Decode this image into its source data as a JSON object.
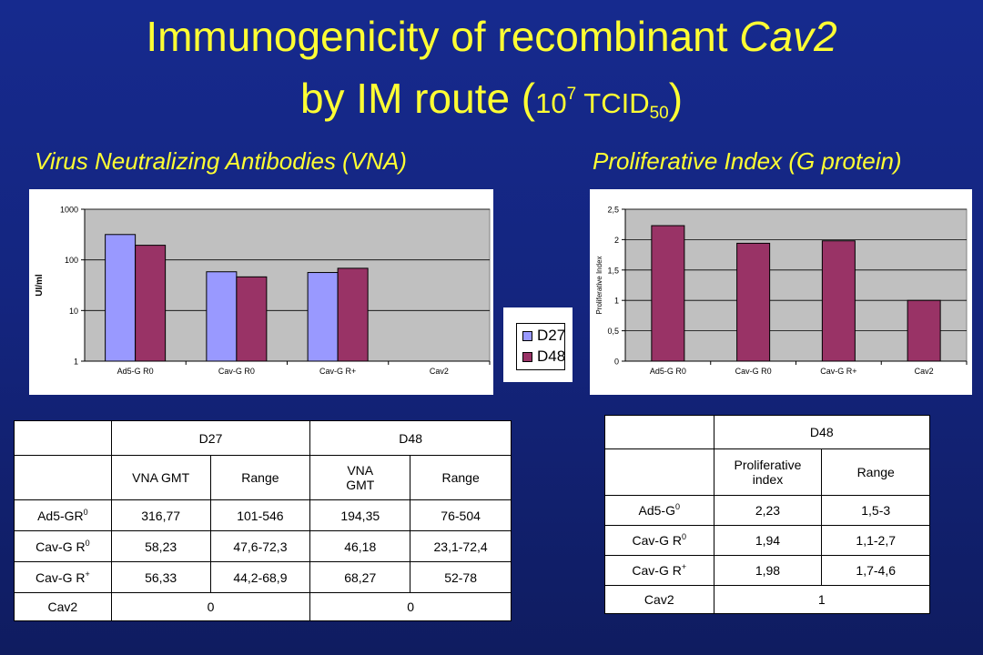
{
  "title": {
    "line1_prefix": "Immunogenicity of recombinant",
    "line1_italic": "Cav2",
    "line2_prefix": "by IM route (",
    "line2_base": "10",
    "line2_exp": "7",
    "line2_unit": "TCID",
    "line2_sub": "50",
    "line2_suffix": ")"
  },
  "subtitles": {
    "left": "Virus Neutralizing Antibodies (VNA)",
    "right": "Proliferative Index (G protein)"
  },
  "chart_data": [
    {
      "type": "bar",
      "scale": "log",
      "categories": [
        "Ad5-G R0",
        "Cav-G R0",
        "Cav-G R+",
        "Cav2"
      ],
      "series": [
        {
          "name": "D27",
          "values": [
            316.77,
            58.23,
            56.33,
            0
          ],
          "color": "#9999ff"
        },
        {
          "name": "D48",
          "values": [
            194.35,
            46.18,
            68.27,
            0
          ],
          "color": "#993366"
        }
      ],
      "xlabel": "",
      "ylabel": "UI/ml",
      "ylim": [
        1,
        1000
      ],
      "yticks": [
        "1",
        "10",
        "100",
        "1000"
      ],
      "grid": true,
      "legend_position": "right"
    },
    {
      "type": "bar",
      "categories": [
        "Ad5-G R0",
        "Cav-G R0",
        "Cav-G R+",
        "Cav2"
      ],
      "series": [
        {
          "name": "D48",
          "values": [
            2.23,
            1.94,
            1.98,
            1
          ],
          "color": "#993366"
        }
      ],
      "xlabel": "",
      "ylabel": "Proliferative Index",
      "ylim": [
        0,
        2.5
      ],
      "yticks": [
        "0",
        "0,5",
        "1",
        "1,5",
        "2",
        "2,5"
      ],
      "grid": true
    }
  ],
  "legend": {
    "items": [
      {
        "label": "D27",
        "color": "#9999ff"
      },
      {
        "label": "D48",
        "color": "#993366"
      }
    ]
  },
  "table_vna": {
    "group_headers": [
      "D27",
      "D48"
    ],
    "col_headers": [
      "VNA GMT",
      "Range",
      "VNA GMT",
      "Range"
    ],
    "rows": [
      {
        "label": "Ad5-GR",
        "label_sup": "0",
        "cells": [
          "316,77",
          "101-546",
          "194,35",
          "76-504"
        ]
      },
      {
        "label": "Cav-G R",
        "label_sup": "0",
        "cells": [
          "58,23",
          "47,6-72,3",
          "46,18",
          "23,1-72,4"
        ]
      },
      {
        "label": "Cav-G R",
        "label_sup": "+",
        "cells": [
          "56,33",
          "44,2-68,9",
          "68,27",
          "52-78"
        ]
      },
      {
        "label": "Cav2",
        "label_sup": "",
        "cells": [
          "0",
          "0"
        ]
      }
    ]
  },
  "table_pi": {
    "group_header": "D48",
    "col_headers": [
      "Proliferative index",
      "Range"
    ],
    "rows": [
      {
        "label": "Ad5-G",
        "label_sup": "0",
        "cells": [
          "2,23",
          "1,5-3"
        ]
      },
      {
        "label": "Cav-G R",
        "label_sup": "0",
        "cells": [
          "1,94",
          "1,1-2,7"
        ]
      },
      {
        "label": "Cav-G R",
        "label_sup": "+",
        "cells": [
          "1,98",
          "1,7-4,6"
        ]
      },
      {
        "label": "Cav2",
        "label_sup": "",
        "cells": [
          "1"
        ]
      }
    ]
  }
}
